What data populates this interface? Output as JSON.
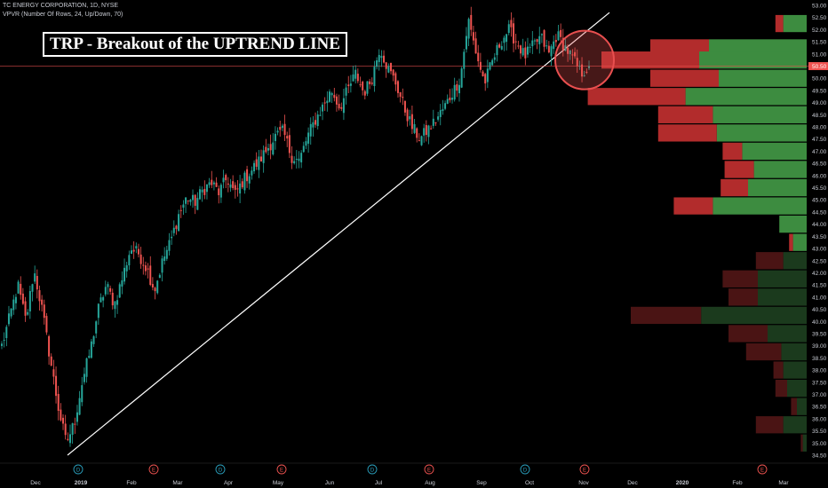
{
  "header": {
    "symbol_line": "TC ENERGY CORPORATION, 1D, NYSE",
    "indicator_line": "VPVR (Number Of Rows, 24, Up/Down, 70)"
  },
  "annotation": {
    "title": "TRP - Breakout of the UPTREND LINE"
  },
  "colors": {
    "background": "#000000",
    "up": "#26a69a",
    "down": "#ef5350",
    "trendline": "#ffffff",
    "price_line": "#ef5350",
    "vp_up": "#3d8c40",
    "vp_down": "#b22c2c",
    "vp_up_dim": "#1b3a1d",
    "vp_down_dim": "#4a1414",
    "highlight_circle": "#e84f4f"
  },
  "chart_data": {
    "type": "candlestick",
    "title": "TRP - Breakout of the UPTREND LINE",
    "symbol": "TC ENERGY CORPORATION",
    "interval": "1D",
    "exchange": "NYSE",
    "x_labels": [
      "Dec",
      "2019",
      "Feb",
      "Mar",
      "Apr",
      "May",
      "Jun",
      "Jul",
      "Aug",
      "Sep",
      "Oct",
      "Nov",
      "Dec",
      "2020",
      "Feb",
      "Mar"
    ],
    "y_ticks": [
      "53.00",
      "52.50",
      "52.00",
      "51.50",
      "51.00",
      "50.50",
      "50.00",
      "49.50",
      "49.00",
      "48.50",
      "48.00",
      "47.50",
      "47.00",
      "46.50",
      "46.00",
      "45.50",
      "45.00",
      "44.50",
      "44.00",
      "43.50",
      "43.00",
      "42.50",
      "42.00",
      "41.50",
      "41.00",
      "40.50",
      "40.00",
      "39.50",
      "39.00",
      "38.50",
      "38.00",
      "37.50",
      "37.00",
      "36.50",
      "36.00",
      "35.50",
      "35.00",
      "34.50"
    ],
    "ylim": [
      34.3,
      53.2
    ],
    "last_price": "50.50",
    "price_path": [
      [
        "Nov",
        39.0
      ],
      [
        "Nov",
        40.2
      ],
      [
        "Nov",
        41.5
      ],
      [
        "Dec",
        40.0
      ],
      [
        "Dec",
        42.1
      ],
      [
        "Dec",
        40.5
      ],
      [
        "Dec",
        38.5
      ],
      [
        "Dec",
        36.5
      ],
      [
        "Dec",
        35.0
      ],
      [
        "Dec",
        35.8
      ],
      [
        "2019",
        37.5
      ],
      [
        "2019",
        38.8
      ],
      [
        "2019",
        40.5
      ],
      [
        "2019",
        41.5
      ],
      [
        "2019",
        40.7
      ],
      [
        "2019",
        41.8
      ],
      [
        "Feb",
        43.0
      ],
      [
        "Feb",
        42.8
      ],
      [
        "Feb",
        42.2
      ],
      [
        "Feb",
        41.3
      ],
      [
        "Feb",
        42.5
      ],
      [
        "Feb",
        43.3
      ],
      [
        "Mar",
        44.4
      ],
      [
        "Mar",
        45.1
      ],
      [
        "Mar",
        44.9
      ],
      [
        "Mar",
        45.4
      ],
      [
        "Mar",
        45.7
      ],
      [
        "Mar",
        45.3
      ],
      [
        "Apr",
        45.9
      ],
      [
        "Apr",
        45.2
      ],
      [
        "Apr",
        45.8
      ],
      [
        "Apr",
        46.2
      ],
      [
        "Apr",
        46.6
      ],
      [
        "May",
        47.1
      ],
      [
        "May",
        47.6
      ],
      [
        "May",
        47.8
      ],
      [
        "May",
        46.8
      ],
      [
        "May",
        46.6
      ],
      [
        "May",
        47.6
      ],
      [
        "Jun",
        48.3
      ],
      [
        "Jun",
        48.9
      ],
      [
        "Jun",
        49.5
      ],
      [
        "Jun",
        48.8
      ],
      [
        "Jun",
        49.5
      ],
      [
        "Jul",
        50.2
      ],
      [
        "Jul",
        49.4
      ],
      [
        "Jul",
        50.0
      ],
      [
        "Jul",
        51.3
      ],
      [
        "Jul",
        50.4
      ],
      [
        "Jul",
        49.8
      ],
      [
        "Aug",
        48.8
      ],
      [
        "Aug",
        48.0
      ],
      [
        "Aug",
        47.5
      ],
      [
        "Aug",
        47.9
      ],
      [
        "Aug",
        48.3
      ],
      [
        "Aug",
        48.8
      ],
      [
        "Aug",
        49.4
      ],
      [
        "Sep",
        50.0
      ],
      [
        "Sep",
        52.4
      ],
      [
        "Sep",
        51.0
      ],
      [
        "Sep",
        49.8
      ],
      [
        "Sep",
        50.7
      ],
      [
        "Sep",
        51.5
      ],
      [
        "Sep",
        52.0
      ],
      [
        "Oct",
        51.5
      ],
      [
        "Oct",
        50.9
      ],
      [
        "Oct",
        51.3
      ],
      [
        "Oct",
        51.7
      ],
      [
        "Oct",
        51.0
      ],
      [
        "Oct",
        51.8
      ],
      [
        "Oct",
        51.3
      ],
      [
        "Nov",
        50.8
      ],
      [
        "Nov",
        50.2
      ],
      [
        "Nov",
        50.5
      ]
    ],
    "trendline": {
      "from": [
        "Dec",
        34.5
      ],
      "to": [
        "Nov",
        52.5
      ],
      "extends_to": [
        "Nov",
        52.7
      ]
    },
    "breakout_circle": {
      "center": [
        "Nov",
        50.75
      ],
      "label": ""
    },
    "events": [
      {
        "label": "D",
        "x": "2019",
        "color": "#2a9fbc"
      },
      {
        "label": "E",
        "x": "Feb",
        "color": "#ef5350"
      },
      {
        "label": "D",
        "x": "Apr",
        "color": "#2a9fbc"
      },
      {
        "label": "E",
        "x": "May",
        "color": "#ef5350"
      },
      {
        "label": "D",
        "x": "Jul",
        "color": "#2a9fbc"
      },
      {
        "label": "E",
        "x": "Aug",
        "color": "#ef5350"
      },
      {
        "label": "D",
        "x": "Oct",
        "color": "#2a9fbc"
      },
      {
        "label": "E",
        "x": "Nov",
        "color": "#ef5350"
      },
      {
        "label": "E",
        "x": "Feb",
        "color": "#ef5350"
      }
    ],
    "volume_profile": {
      "rows": 24,
      "mode": "Up/Down",
      "value_area_percent": 70,
      "bins": [
        {
          "price": 52.25,
          "up": 0.12,
          "down": 0.04,
          "in_value_area": true
        },
        {
          "price": 51.25,
          "up": 0.5,
          "down": 0.3,
          "in_value_area": true
        },
        {
          "price": 50.75,
          "up": 0.55,
          "down": 0.5,
          "in_value_area": true
        },
        {
          "price": 50.0,
          "up": 0.45,
          "down": 0.35,
          "in_value_area": true
        },
        {
          "price": 49.25,
          "up": 0.62,
          "down": 0.5,
          "in_value_area": true
        },
        {
          "price": 48.5,
          "up": 0.48,
          "down": 0.28,
          "in_value_area": true
        },
        {
          "price": 47.75,
          "up": 0.46,
          "down": 0.3,
          "in_value_area": true
        },
        {
          "price": 47.0,
          "up": 0.33,
          "down": 0.1,
          "in_value_area": true
        },
        {
          "price": 46.25,
          "up": 0.27,
          "down": 0.15,
          "in_value_area": true
        },
        {
          "price": 45.5,
          "up": 0.3,
          "down": 0.14,
          "in_value_area": true
        },
        {
          "price": 44.75,
          "up": 0.48,
          "down": 0.2,
          "in_value_area": true
        },
        {
          "price": 44.0,
          "up": 0.14,
          "down": 0.0,
          "in_value_area": true
        },
        {
          "price": 43.25,
          "up": 0.07,
          "down": 0.02,
          "in_value_area": true
        },
        {
          "price": 42.5,
          "up": 0.12,
          "down": 0.14,
          "in_value_area": false
        },
        {
          "price": 41.75,
          "up": 0.25,
          "down": 0.18,
          "in_value_area": false
        },
        {
          "price": 41.0,
          "up": 0.25,
          "down": 0.15,
          "in_value_area": false
        },
        {
          "price": 40.25,
          "up": 0.54,
          "down": 0.36,
          "in_value_area": false
        },
        {
          "price": 39.5,
          "up": 0.2,
          "down": 0.2,
          "in_value_area": false
        },
        {
          "price": 38.75,
          "up": 0.13,
          "down": 0.18,
          "in_value_area": false
        },
        {
          "price": 38.0,
          "up": 0.12,
          "down": 0.05,
          "in_value_area": false
        },
        {
          "price": 37.25,
          "up": 0.1,
          "down": 0.06,
          "in_value_area": false
        },
        {
          "price": 36.5,
          "up": 0.05,
          "down": 0.03,
          "in_value_area": false
        },
        {
          "price": 35.75,
          "up": 0.12,
          "down": 0.14,
          "in_value_area": false
        },
        {
          "price": 35.0,
          "up": 0.02,
          "down": 0.01,
          "in_value_area": false
        }
      ]
    }
  }
}
